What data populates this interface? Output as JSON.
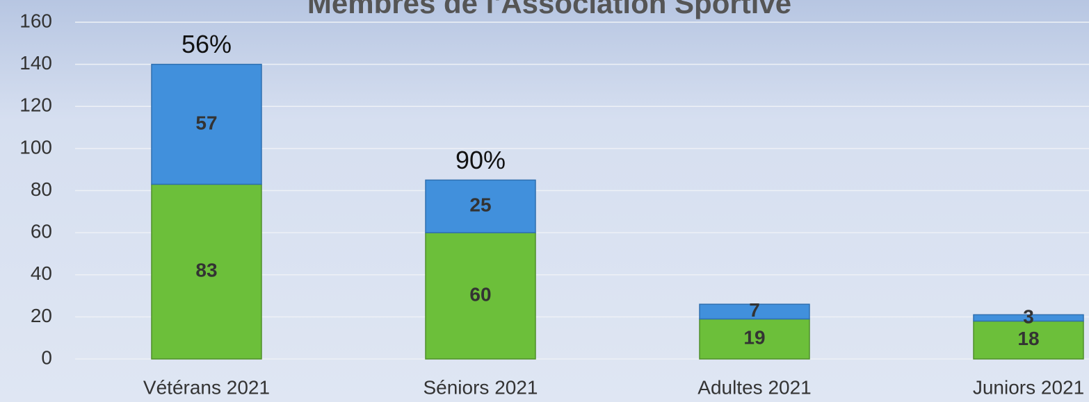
{
  "chart_data": {
    "type": "stacked_bar",
    "title": "Membres de l'Association Sportive",
    "categories": [
      "Vétérans 2021",
      "Séniors 2021",
      "Adultes 2021",
      "Juniors 2021"
    ],
    "series": [
      {
        "color": "#6cbf3a",
        "values": [
          83,
          60,
          19,
          18
        ]
      },
      {
        "color": "#4190dc",
        "values": [
          57,
          25,
          7,
          3
        ]
      }
    ],
    "top_labels": [
      "56%",
      "90%",
      null,
      null
    ],
    "ylim": [
      0,
      160
    ],
    "yticks": [
      0,
      20,
      40,
      60,
      80,
      100,
      120,
      140,
      160
    ],
    "grid": true
  }
}
